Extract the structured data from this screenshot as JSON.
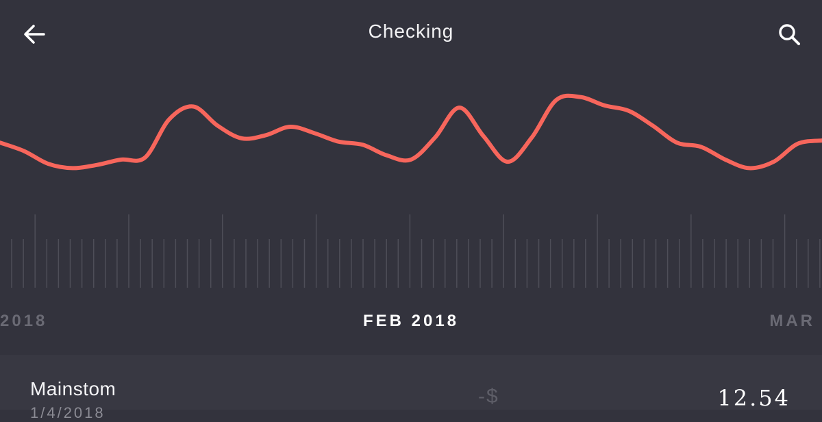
{
  "header": {
    "title": "Checking",
    "back_icon": "arrow-left-icon",
    "search_icon": "search-icon"
  },
  "timeline": {
    "prev_month": "2018",
    "current_month": "FEB 2018",
    "next_month": "MAR"
  },
  "chart_data": {
    "type": "line",
    "color": "#f7665c",
    "grid": false,
    "title": "",
    "xlabel": "",
    "ylabel": "",
    "x": [
      0,
      1,
      2,
      3,
      4,
      5,
      6,
      7,
      8,
      9,
      10,
      11,
      12,
      13,
      14,
      15,
      16,
      17,
      18,
      19,
      20,
      21,
      22,
      23,
      24,
      25,
      26,
      27,
      28,
      29,
      30,
      31,
      32,
      33,
      34
    ],
    "values": [
      0.56,
      0.48,
      0.36,
      0.32,
      0.35,
      0.4,
      0.42,
      0.78,
      0.9,
      0.72,
      0.6,
      0.63,
      0.71,
      0.65,
      0.57,
      0.54,
      0.44,
      0.4,
      0.61,
      0.89,
      0.62,
      0.38,
      0.61,
      0.96,
      0.99,
      0.91,
      0.86,
      0.72,
      0.56,
      0.52,
      0.4,
      0.32,
      0.38,
      0.55,
      0.58
    ],
    "colors": {
      "line": "#f7665c",
      "tick": "#4e4e58",
      "background": "#33333d"
    }
  },
  "transaction": {
    "name": "Mainstom",
    "date": "1/4/2018",
    "currency_prefix": "-$",
    "amount": "12.54"
  }
}
